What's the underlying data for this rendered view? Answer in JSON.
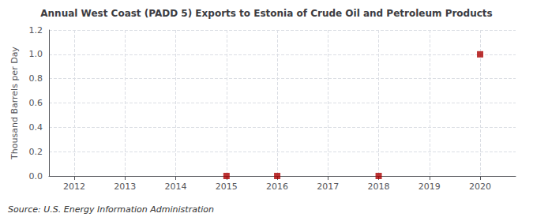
{
  "chart_data": {
    "type": "scatter",
    "title": "Annual West Coast (PADD 5) Exports to Estonia of Crude Oil and Petroleum Products",
    "ylabel": "Thousand Barrels per Day",
    "source": "Source: U.S. Energy Information Administration",
    "x": [
      2015,
      2016,
      2018,
      2020
    ],
    "values": [
      0.0,
      0.0,
      0.0,
      1.0
    ],
    "color": "#aa0000",
    "marker": "square",
    "xlim": [
      2011.5,
      2020.7
    ],
    "xticks": [
      2012,
      2013,
      2014,
      2015,
      2016,
      2017,
      2018,
      2019,
      2020
    ],
    "ylim": [
      0.0,
      1.2
    ],
    "yticks": [
      {
        "value": 0.0,
        "label": "0.0"
      },
      0.2,
      0.4,
      0.6,
      0.8,
      {
        "value": 1.0,
        "label": "1.0"
      },
      1.2
    ],
    "grid": true
  }
}
